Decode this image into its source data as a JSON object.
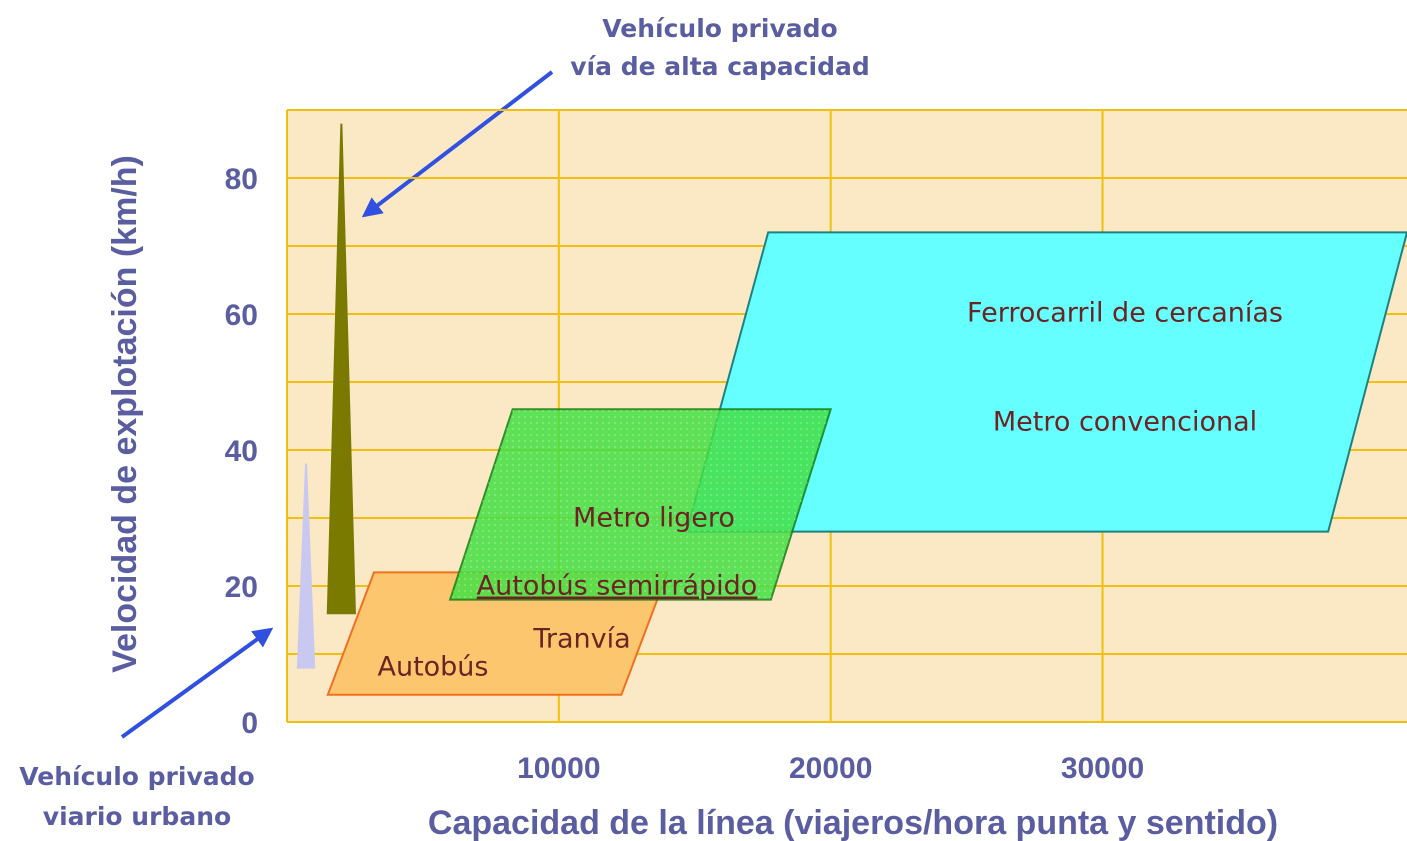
{
  "chart_data": {
    "type": "region",
    "xlabel": "Capacidad de la línea (viajeros/hora punta y sentido)",
    "ylabel": "Velocidad de explotación (km/h)",
    "annotations": [
      [
        "Vehículo privado",
        "vía de alta capacidad"
      ],
      [
        "Vehículo privado",
        "viario urbano"
      ]
    ],
    "xlim": [
      0,
      41200
    ],
    "ylim": [
      0,
      90
    ],
    "xticks": [
      10000,
      20000,
      30000
    ],
    "yticks": [
      0,
      20,
      40,
      60,
      80
    ],
    "ygrid_minor": [
      10,
      30,
      50,
      70
    ],
    "grid": true,
    "regions": [
      {
        "labels": [
          "Autobús",
          "Tranvía"
        ],
        "color": "#fcc66e",
        "stroke": "#f07020",
        "x": [
          1500,
          3200,
          14000,
          12300
        ],
        "y": [
          4,
          22,
          22,
          4
        ]
      },
      {
        "labels": [
          "Autobús semirrápido",
          "Metro ligero"
        ],
        "color": "#44e044",
        "stroke": "#108010",
        "x": [
          6000,
          8300,
          20000,
          17800
        ],
        "y": [
          18,
          46,
          46,
          18
        ]
      },
      {
        "labels": [
          "Ferrocarril de cercanías",
          "Metro convencional"
        ],
        "color": "#66ffff",
        "stroke": "#208080",
        "x": [
          14700,
          17700,
          41200,
          38300
        ],
        "y": [
          28,
          72,
          72,
          28
        ]
      },
      {
        "labels": [],
        "color": "#7a7a00",
        "stroke": "#7a7a00",
        "x": [
          1500,
          2000,
          2500
        ],
        "y": [
          16,
          88,
          16
        ]
      },
      {
        "labels": [],
        "color": "#c8c8f0",
        "stroke": "#c8c8f0",
        "x": [
          400,
          700,
          1000
        ],
        "y": [
          8,
          38,
          8
        ]
      }
    ]
  }
}
